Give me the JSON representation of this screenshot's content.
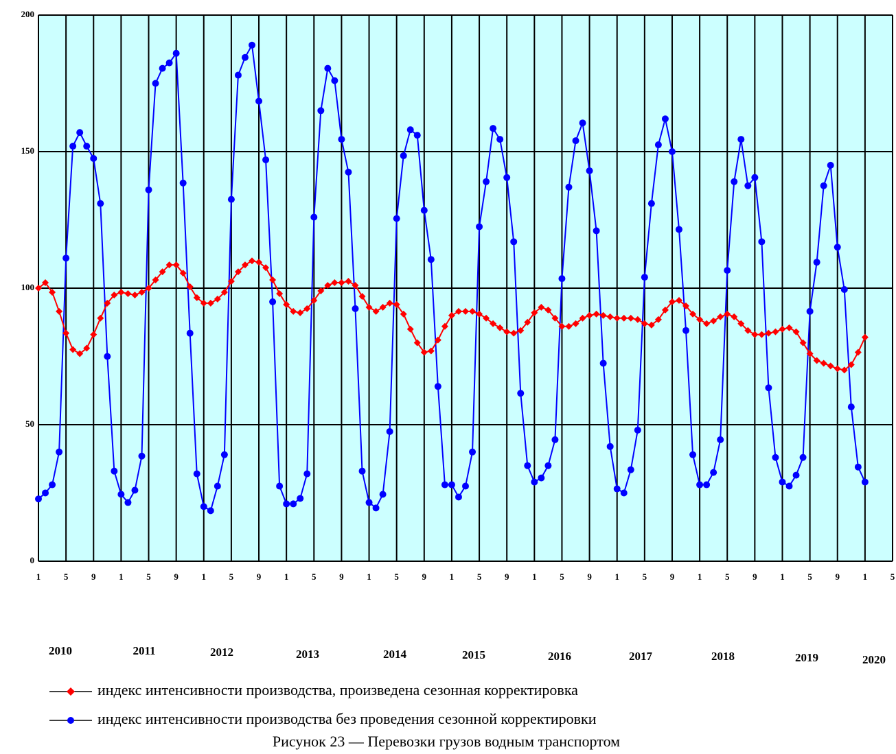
{
  "chart_data": {
    "type": "line",
    "caption": "Рисунок 23 — Перевозки грузов водным транспортом",
    "year_labels": [
      "2010",
      "2011",
      "2012",
      "2013",
      "2014",
      "2015",
      "2016",
      "2017",
      "2018",
      "2019",
      "2020"
    ],
    "x": [
      0,
      1,
      2,
      3,
      4,
      5,
      6,
      7,
      8,
      9,
      10,
      11,
      12,
      13,
      14,
      15,
      16,
      17,
      18,
      19,
      20,
      21,
      22,
      23,
      24,
      25,
      26,
      27,
      28,
      29,
      30,
      31,
      32,
      33,
      34,
      35,
      36,
      37,
      38,
      39,
      40,
      41,
      42,
      43,
      44,
      45,
      46,
      47,
      48,
      49,
      50,
      51,
      52,
      53,
      54,
      55,
      56,
      57,
      58,
      59,
      60,
      61,
      62,
      63,
      64,
      65,
      66,
      67,
      68,
      69,
      70,
      71,
      72,
      73,
      74,
      75,
      76,
      77,
      78,
      79,
      80,
      81,
      82,
      83,
      84,
      85,
      86,
      87,
      88,
      89,
      90,
      91,
      92,
      93,
      94,
      95,
      96,
      97,
      98,
      99,
      100,
      101,
      102,
      103,
      104,
      105,
      106,
      107,
      108,
      109,
      110,
      111,
      112,
      113,
      114,
      115,
      116,
      117,
      118,
      119,
      120
    ],
    "xlim": [
      0,
      124
    ],
    "xticks": [
      {
        "value": 0,
        "label": "1"
      },
      {
        "value": 4,
        "label": "5"
      },
      {
        "value": 8,
        "label": "9"
      },
      {
        "value": 12,
        "label": "1"
      },
      {
        "value": 16,
        "label": "5"
      },
      {
        "value": 20,
        "label": "9"
      },
      {
        "value": 24,
        "label": "1"
      },
      {
        "value": 28,
        "label": "5"
      },
      {
        "value": 32,
        "label": "9"
      },
      {
        "value": 36,
        "label": "1"
      },
      {
        "value": 40,
        "label": "5"
      },
      {
        "value": 44,
        "label": "9"
      },
      {
        "value": 48,
        "label": "1"
      },
      {
        "value": 52,
        "label": "5"
      },
      {
        "value": 56,
        "label": "9"
      },
      {
        "value": 60,
        "label": "1"
      },
      {
        "value": 64,
        "label": "5"
      },
      {
        "value": 68,
        "label": "9"
      },
      {
        "value": 72,
        "label": "1"
      },
      {
        "value": 76,
        "label": "5"
      },
      {
        "value": 80,
        "label": "9"
      },
      {
        "value": 84,
        "label": "1"
      },
      {
        "value": 88,
        "label": "5"
      },
      {
        "value": 92,
        "label": "9"
      },
      {
        "value": 96,
        "label": "1"
      },
      {
        "value": 100,
        "label": "5"
      },
      {
        "value": 104,
        "label": "9"
      },
      {
        "value": 108,
        "label": "1"
      },
      {
        "value": 112,
        "label": "5"
      },
      {
        "value": 116,
        "label": "9"
      },
      {
        "value": 120,
        "label": "1"
      },
      {
        "value": 124,
        "label": "5"
      }
    ],
    "ylim": [
      0,
      200
    ],
    "yticks": [
      0,
      50,
      100,
      150,
      200
    ],
    "grid": true,
    "background": "#ccffff",
    "series": [
      {
        "name": "индекс интенсивности производства, произведена сезонная корректировка",
        "color": "#ff0000",
        "marker": "diamond",
        "values": [
          100,
          102,
          98.5,
          91.5,
          83.5,
          77.5,
          76,
          78,
          83,
          89,
          94.5,
          97.5,
          98.5,
          98,
          97.5,
          98.5,
          100,
          103,
          106,
          108.5,
          108.5,
          105.5,
          100.5,
          96.5,
          94.5,
          94.5,
          96,
          98.5,
          102.5,
          106,
          108.5,
          110,
          109.5,
          107.5,
          103,
          98,
          94,
          91.5,
          91,
          92.5,
          95.5,
          99,
          101,
          102,
          102,
          102.5,
          101,
          97,
          93,
          91.5,
          93,
          94.5,
          94,
          90.5,
          85,
          80,
          76.5,
          77,
          81,
          86,
          90,
          91.5,
          91.5,
          91.5,
          90.5,
          89,
          87,
          85.5,
          84,
          83.5,
          84.5,
          87.5,
          91,
          93,
          92,
          89,
          86,
          86,
          87,
          89,
          90,
          90.5,
          90,
          89.5,
          89,
          89,
          89,
          88.5,
          87,
          86.5,
          88.5,
          92,
          95,
          95.5,
          93.5,
          90.5,
          88.5,
          87,
          88,
          89.5,
          90.5,
          89.5,
          87,
          84.5,
          83,
          83,
          83.5,
          84,
          85,
          85.5,
          84,
          80,
          76,
          73.5,
          72.5,
          71.5,
          70.5,
          70,
          72,
          76.5,
          82
        ]
      },
      {
        "name": "индекс интенсивности производства без проведения сезонной корректировки",
        "color": "#0000ff",
        "marker": "circle",
        "values": [
          22.8,
          25,
          28,
          40,
          111,
          152,
          157,
          152,
          147.5,
          131,
          75,
          33,
          24.5,
          21.5,
          26,
          38.5,
          136,
          175,
          180.5,
          182.5,
          186,
          138.5,
          83.5,
          32,
          20,
          18.5,
          27.5,
          39,
          132.5,
          178,
          184.5,
          189,
          168.5,
          147,
          95,
          27.5,
          21,
          21,
          23,
          32,
          126,
          165,
          180.5,
          176,
          154.5,
          142.5,
          92.5,
          33,
          21.5,
          19.5,
          24.5,
          47.5,
          125.5,
          148.5,
          158,
          156,
          128.5,
          110.5,
          64,
          28,
          28,
          23.5,
          27.5,
          40,
          122.5,
          139,
          158.5,
          154.5,
          140.5,
          117,
          61.5,
          35,
          29,
          30.5,
          35,
          44.5,
          103.5,
          137,
          154,
          160.5,
          143,
          121,
          72.5,
          42,
          26.5,
          25,
          33.5,
          48,
          104,
          131,
          152.5,
          162,
          150,
          121.5,
          84.5,
          39,
          28,
          28,
          32.5,
          44.5,
          106.5,
          139,
          154.5,
          137.5,
          140.5,
          117,
          63.5,
          38,
          29,
          27.5,
          31.5,
          38,
          91.5,
          109.5,
          137.5,
          145,
          115,
          99.5,
          56.5,
          34.5,
          29
        ]
      }
    ]
  }
}
